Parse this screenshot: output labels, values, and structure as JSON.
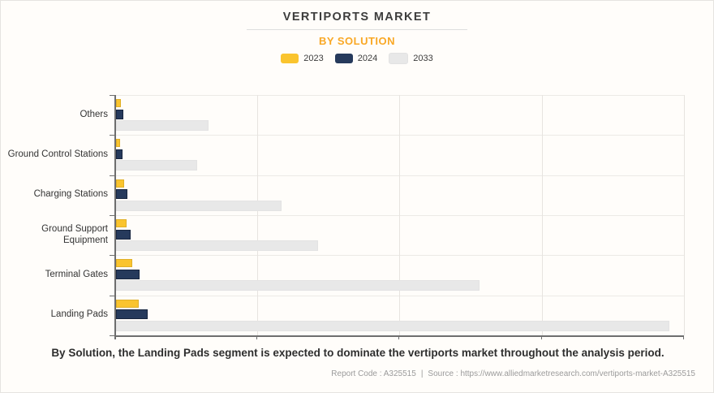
{
  "header": {
    "title": "VERTIPORTS MARKET",
    "subtitle": "BY SOLUTION"
  },
  "legend": {
    "items": [
      {
        "label": "2023",
        "color": "#fac42e"
      },
      {
        "label": "2024",
        "color": "#263a5c"
      },
      {
        "label": "2033",
        "color": "#e8e8e8"
      }
    ]
  },
  "chart_data": {
    "type": "bar",
    "orientation": "horizontal",
    "title": "VERTIPORTS MARKET",
    "subtitle": "BY SOLUTION",
    "categories": [
      "Others",
      "Ground Control Stations",
      "Charging Stations",
      "Ground Support Equipment",
      "Terminal Gates",
      "Landing Pads"
    ],
    "series": [
      {
        "name": "2023",
        "color": "#fac42e",
        "values": [
          0.9,
          0.75,
          1.45,
          1.9,
          2.9,
          4.0
        ]
      },
      {
        "name": "2024",
        "color": "#263a5c",
        "values": [
          1.3,
          1.15,
          2.0,
          2.6,
          4.1,
          5.6
        ]
      },
      {
        "name": "2033",
        "color": "#e8e8e8",
        "values": [
          16.3,
          14.2,
          29.0,
          35.4,
          63.8,
          97.1
        ]
      }
    ],
    "value_axis": {
      "min": 0,
      "max": 100,
      "gridlines": [
        25,
        50,
        75,
        100
      ],
      "tick_labels_visible": false
    },
    "legend_position": "top",
    "grid": true
  },
  "caption": "By Solution, the Landing Pads segment is expected to dominate the vertiports market throughout the analysis period.",
  "footer": {
    "report_code": "Report Code : A325515",
    "separator": "|",
    "source": "Source : https://www.alliedmarketresearch.com/vertiports-market-A325515"
  }
}
